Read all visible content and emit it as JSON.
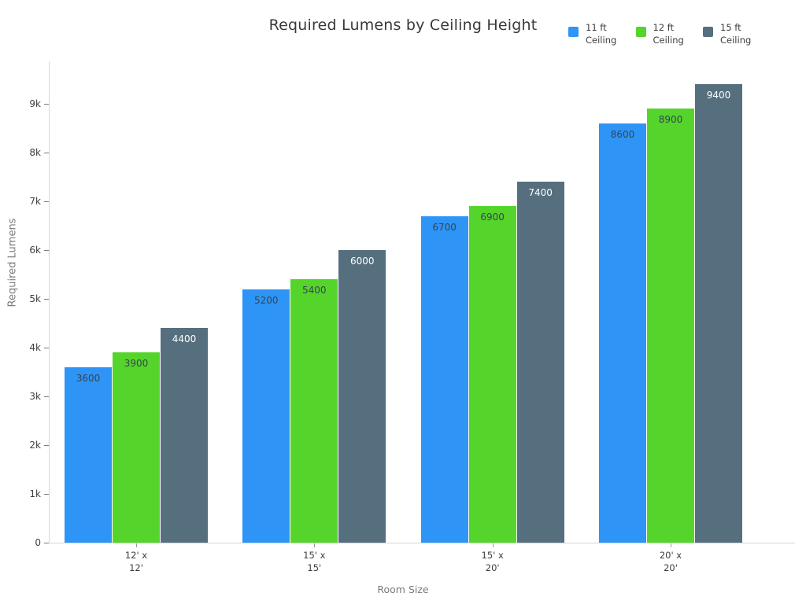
{
  "chart_data": {
    "type": "bar",
    "title": "Required Lumens by Ceiling Height",
    "xlabel": "Room Size",
    "ylabel": "Required Lumens",
    "categories": [
      "12' x 12'",
      "15' x 15'",
      "15' x 20'",
      "20' x 20'"
    ],
    "categories_display": [
      [
        "12' x",
        "12'"
      ],
      [
        "15' x",
        "15'"
      ],
      [
        "15' x",
        "20'"
      ],
      [
        "20' x",
        "20'"
      ]
    ],
    "series": [
      {
        "name": "11 ft Ceiling",
        "legend_lines": [
          "11 ft",
          "Ceiling"
        ],
        "color": "#2E94F6",
        "label_color": "#36454E",
        "values": [
          3600,
          5200,
          6700,
          8600
        ]
      },
      {
        "name": "12 ft Ceiling",
        "legend_lines": [
          "12 ft",
          "Ceiling"
        ],
        "color": "#55D42B",
        "label_color": "#36454E",
        "values": [
          3900,
          5400,
          6900,
          8900
        ]
      },
      {
        "name": "15 ft Ceiling",
        "legend_lines": [
          "15 ft",
          "Ceiling"
        ],
        "color": "#566F7E",
        "label_color": "#FFFFFF",
        "values": [
          4400,
          6000,
          7400,
          9400
        ]
      }
    ],
    "y_ticks": [
      "0",
      "1k",
      "2k",
      "3k",
      "4k",
      "5k",
      "6k",
      "7k",
      "8k",
      "9k"
    ],
    "ylim": [
      0,
      9900
    ],
    "grid": false,
    "legend_position": "top-right"
  }
}
